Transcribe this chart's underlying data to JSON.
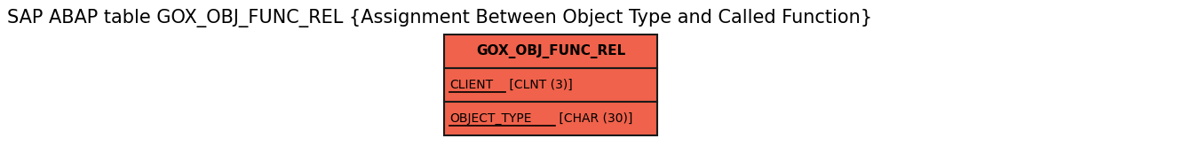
{
  "title": "SAP ABAP table GOX_OBJ_FUNC_REL {Assignment Between Object Type and Called Function}",
  "title_fontsize": 15,
  "title_color": "#000000",
  "entity_name": "GOX_OBJ_FUNC_REL",
  "fields": [
    {
      "label": "CLIENT",
      "underline": true,
      "suffix": " [CLNT (3)]"
    },
    {
      "label": "OBJECT_TYPE",
      "underline": true,
      "suffix": " [CHAR (30)]"
    }
  ],
  "box_fill_color": "#F0624B",
  "box_edge_color": "#1a1a1a",
  "header_fontsize": 11,
  "field_fontsize": 10,
  "background_color": "#ffffff"
}
